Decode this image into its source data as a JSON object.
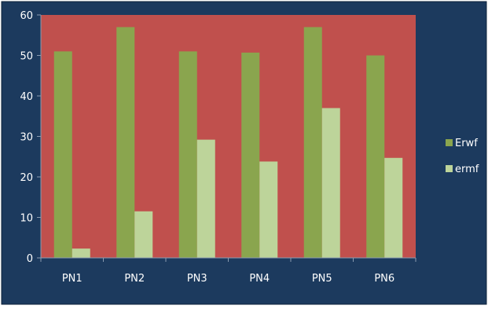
{
  "chart_data": {
    "type": "bar",
    "categories": [
      "PN1",
      "PN2",
      "PN3",
      "PN4",
      "PN5",
      "PN6"
    ],
    "series": [
      {
        "name": "Erwf",
        "color": "#8aa54e",
        "values": [
          51,
          57,
          51,
          50.7,
          57,
          50
        ]
      },
      {
        "name": "ermf",
        "color": "#bdd49a",
        "values": [
          2.3,
          11.5,
          29.2,
          23.8,
          37,
          24.7
        ]
      }
    ],
    "ylim": [
      0,
      60
    ],
    "yticks": [
      "0",
      "10",
      "20",
      "30",
      "40",
      "50",
      "60"
    ],
    "grid": false,
    "legend": "right",
    "colors": {
      "chart_background": "#1c3a5e",
      "plot_background": "#c0504d",
      "text": "#ffffff"
    }
  }
}
